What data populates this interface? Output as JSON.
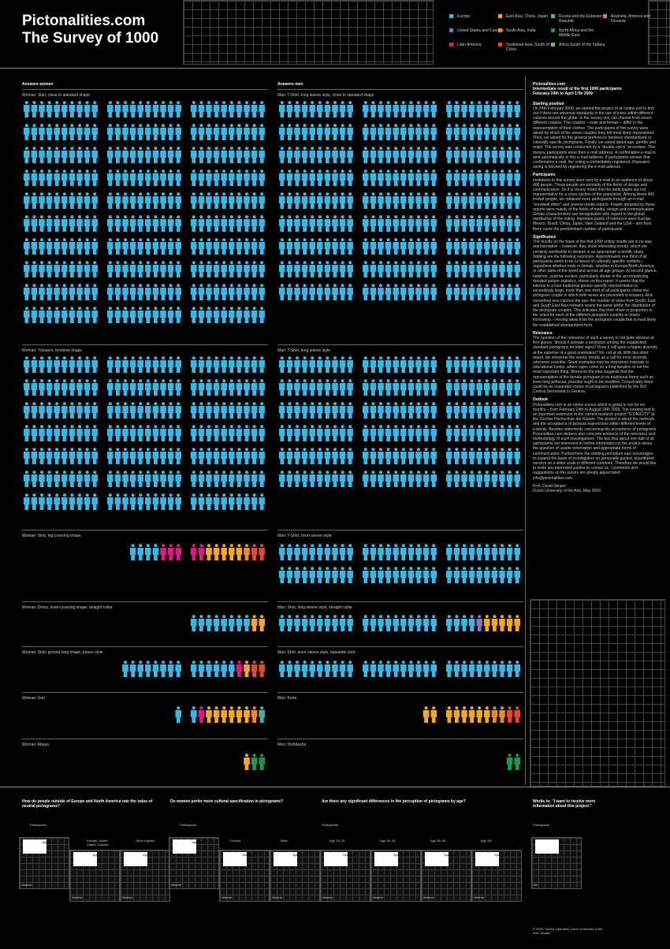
{
  "title_line1": "Pictonalities.com",
  "title_line2": "The Survey of  1000",
  "legend": [
    {
      "label": "Europe",
      "color": "#37b9e6"
    },
    {
      "label": "United States and Canada",
      "color": "#8a74c0"
    },
    {
      "label": "Latin America",
      "color": "#e0187e"
    },
    {
      "label": "East Asia, China, Japan",
      "color": "#f5a81b"
    },
    {
      "label": "South Asia, India",
      "color": "#f08a1e"
    },
    {
      "label": "Southeast Asia, South of China",
      "color": "#e5472a"
    },
    {
      "label": "Russia and the Eurasian Republic",
      "color": "#3bb8a8"
    },
    {
      "label": "North Africa and the Middle East",
      "color": "#1c9a4a"
    },
    {
      "label": "Africa South of the Sahara",
      "color": "#7dbb32"
    },
    {
      "label": "Australia, America and Oceania",
      "color": "#d8862b"
    }
  ],
  "col_headers": {
    "women": "Answers women",
    "men": "Answers men"
  },
  "sections": {
    "w1": "Woman: Shirt, close to standard shape",
    "w2": "Woman: Trousers, feminine shape",
    "w3": "Woman: Skirt, leg covering shape",
    "w4": "Woman: Dress, knee-covering shape, straight collar",
    "w5": "Woman: Skirt, ground long shape, paneo style",
    "w6": "Woman: Sari",
    "w7": "Woman: Abaya",
    "m1": "Man: T-Shirt, long sleeve style, close to standard shape",
    "m2": "Man: T-Shirt, long sleeve style",
    "m3": "Man: T-Shirt, short sleeve style",
    "m4": "Man: Shirt, long sleeve style, straight collar",
    "m5": "Man: Shirt, short sleeve style, epaulette shirt",
    "m6": "Man: Kurta",
    "m7": "Man: Dishdasha"
  },
  "chart_data": {
    "type": "table",
    "title": "The Survey of 1000",
    "categories": [
      "Europe",
      "United States and Canada",
      "Latin America",
      "East Asia, China, Japan",
      "South Asia, India",
      "Southeast Asia, South of China",
      "Russia and the Eurasian Republic",
      "North Africa and the Middle East",
      "Africa South of the Sahara",
      "Australia, America and Oceania"
    ],
    "series": [
      {
        "name": "Woman: Shirt, close to standard shape",
        "values": [
          420,
          5,
          96,
          22,
          4,
          6,
          6,
          2,
          2,
          0
        ]
      },
      {
        "name": "Woman: Trousers, feminine shape",
        "values": [
          212,
          1,
          52,
          2,
          0,
          0,
          1,
          0,
          0,
          0
        ]
      },
      {
        "name": "Woman: Skirt, leg covering shape",
        "values": [
          4,
          0,
          5,
          5,
          1,
          2,
          0,
          0,
          0,
          0
        ]
      },
      {
        "name": "Woman: Dress, knee-covering shape, straight collar",
        "values": [
          8,
          0,
          0,
          2,
          0,
          0,
          0,
          0,
          0,
          0
        ]
      },
      {
        "name": "Woman: Skirt, ground long shape, paneo style",
        "values": [
          14,
          0,
          1,
          1,
          0,
          2,
          0,
          0,
          0,
          0
        ]
      },
      {
        "name": "Woman: Sari",
        "values": [
          2,
          0,
          1,
          6,
          1,
          0,
          1,
          0,
          0,
          0
        ]
      },
      {
        "name": "Woman: Abaya",
        "values": [
          0,
          0,
          0,
          1,
          0,
          0,
          0,
          2,
          0,
          0
        ]
      },
      {
        "name": "Man: T-Shirt, long sleeve style, close to standard shape",
        "values": [
          450,
          8,
          64,
          12,
          4,
          4,
          1,
          4,
          1,
          0
        ]
      },
      {
        "name": "Man: T-Shirt, long sleeve style",
        "values": [
          252,
          12,
          58,
          14,
          0,
          0,
          2,
          0,
          0,
          0
        ]
      },
      {
        "name": "Man: T-Shirt, short sleeve style",
        "values": [
          64,
          1,
          1,
          18,
          0,
          3,
          0,
          0,
          0,
          0
        ]
      },
      {
        "name": "Man: Shirt, long sleeve style, straight collar",
        "values": [
          24,
          1,
          0,
          10,
          1,
          2,
          0,
          0,
          0,
          0
        ]
      },
      {
        "name": "Man: Shirt, short sleeve style, epaulette shirt",
        "values": [
          30,
          1,
          0,
          4,
          0,
          0,
          0,
          0,
          0,
          0
        ]
      },
      {
        "name": "Man: Kurta",
        "values": [
          0,
          0,
          0,
          8,
          2,
          2,
          0,
          0,
          0,
          0
        ]
      },
      {
        "name": "Man: Dishdasha",
        "values": [
          0,
          0,
          0,
          0,
          0,
          0,
          0,
          2,
          0,
          0
        ]
      }
    ]
  },
  "right_col": {
    "site": "Pictonalities.com",
    "subtitle": "Intermediate result of the first 1000 participants",
    "dates": "February 24th to April 17th 2009",
    "h_start": "Starting position",
    "p_start": "On 24th February 2009, we started the project of an online poll to find out if there are universal standards in the use of icons within different cultures around the globe. In the survey one can choose from seven different couples. The couples – male and female – differ in the representation of their clothes. The participants of the survey were asked by which of the seven couples they felt most likely represented. Then, we asked for the general preference between standardized or culturally specific pictograms. Finally, we asked about age, gender and origin. The survey was conducted by a \"double opt-in\" procedure. This means, participants enter their e-mail address. A confirmation e-mail is sent automatically to this e-mail address. If participants answer that confirmation e-mail, the voting is immediately registered. Repeated voting is blocked by registering the e-mail address.",
    "h_part": "Participants",
    "p_part": "Invitations to this survey were sent by e-mail to an audience of about 400 people. These people are primarily of the fields of design and communication. So it is clearly noted that the participants are not representative for a cross-section of the population. Among these 400 invited people, we obtained more participants through an e-mail \"snowball effect\" and several media reports. People attracted by these reports were mainly of the fields of media, design and communication. Similar characteristics are recognisable with regard to the global distribution of the voting. Important points of reference were Europe, Mexico, Brazil, China, Japan, New Zealand and the USA – and from there came the predominant number of participants.",
    "h_sig": "Significance",
    "p_sig": "The results on the basis of the first 1000 voting results are in no way representative – however, they show interesting trends, which are certainly worthwhile to deepen in an appropriate scientific study. Striking are the following outcomes: Approximately one third of all participants seem to be in favour of culturally specific symbols – regardless whether male or female, whether in Europe/North America or other parts of the world and across all age groups. At second glance, however, surprise evokes, particularly shown in the accompanying detailed picture statistics, shown on this report. It seems that the interest in a less traditional gender-specific representation is exceedingly large, more than one third of all participants chose the pictogram couple in which both sexes are presented in trousers. And something else catches the eye: the number of votes from South, East and South East Asia remains nearly the same within the distribution of the pictogram couples. This indicates that their share in proportion to the votes for each of the different pictogram couples is clearly increasing – moving away from the pictogram couple that is most likely the established standardized form.",
    "h_rel": "Relevance",
    "p_rel": "The question of the relevance of such a survey is not quite obvious at first glance. Should it activate a revolution among the established standard pictograms for toilet signs? Does it call upon a higher diversity at the expense of a good orientation? No, not at all. With this short report, we interprete the survey results as a call for more diversity whenever possible. Good examples may be instruction manuals or educational books, where signs come on a long duration to not the most important thing. Moreover the idea suggests that the representation of the female pictogram in its traditional forms such as knee-long petticoat, possibly ought to be modified. Conceivably there could be an expanded choice of pictograms published by the ISO Central Secretariat in Geneva.",
    "h_out": "Outlook",
    "p_out": "Pictonalities.com is an online survey which is going to run for six months – from February 24th to August 24th 2009. The existing text is an important extension to the current research project \"ICONICITY\" at the Zürcher Hochschule der Künste. The project is about the methods and the acceptance of pictorial expressions within different levels of iconicity. Besides statements concerning the acceptance of pictograms Pictonalities.com delivers also concrete evidence of the relevance and methodology of such investigations. The fact that about one-half of all participants are interested in further information on the project raises the question of usable information and appropriate forms of communication. Furthermore the existing procedure also encourages to expand the basis of investigation on personally guided, quantitative surveys on a wider scale in different countries. Therefore we would like to invite any interested parties to contact us. Comments and suggestions on the survey are greatly appreciated. info@pictonalities.com",
    "sign1": "Prof. David Skopec",
    "sign2": "Zurich University of the Arts, May 2009"
  },
  "bottom": {
    "q1": "How do people outside of Europe and North America rate the value of neutral pictograms?",
    "q2": "Do women prefer more cultural specification in pictograms?",
    "q3": "Are there any significant differences in the perception of pictograms by age?",
    "q4": "Works to: \"I want to receive more information about this project.\"",
    "lbl_participants": "Participants",
    "lbl_female": "Female",
    "lbl_male": "Male",
    "lbl_eu": "Europe, United States, Canada",
    "lbl_other": "Other regions",
    "lbl_age1": "Age 15–25",
    "lbl_age2": "Age 26–35",
    "lbl_age3": "Age 36–45",
    "lbl_age4": "Age 46+",
    "lbl_specific": "Specific",
    "lbl_neutral": "Neutral",
    "lbl_yes": "Yes",
    "lbl_no": "No",
    "credit": "© 2009, Survey Operation Zurich University of the Arts, Design"
  }
}
